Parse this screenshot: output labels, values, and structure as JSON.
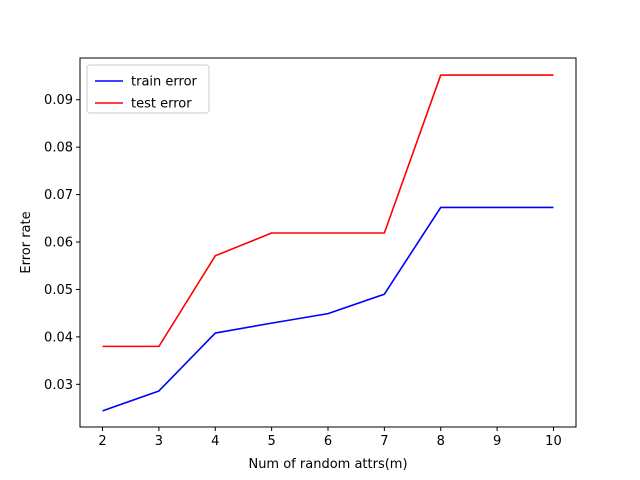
{
  "chart_data": {
    "type": "line",
    "xlabel": "Num of random attrs(m)",
    "ylabel": "Error rate",
    "x": [
      2,
      3,
      4,
      5,
      6,
      7,
      8,
      9,
      10
    ],
    "xlim": [
      1.6,
      10.4
    ],
    "ylim": [
      0.021,
      0.0988
    ],
    "xticks": [
      2,
      3,
      4,
      5,
      6,
      7,
      8,
      9,
      10
    ],
    "yticks": [
      0.03,
      0.04,
      0.05,
      0.06,
      0.07,
      0.08,
      0.09
    ],
    "ytick_labels": [
      "0.03",
      "0.04",
      "0.05",
      "0.06",
      "0.07",
      "0.08",
      "0.09"
    ],
    "grid": false,
    "legend_position": "top-left",
    "series": [
      {
        "name": "train error",
        "color": "#0000ff",
        "values": [
          0.0244,
          0.0286,
          0.0408,
          0.0429,
          0.0449,
          0.049,
          0.0673,
          0.0673,
          0.0673
        ]
      },
      {
        "name": "test error",
        "color": "#ff0000",
        "values": [
          0.038,
          0.038,
          0.0571,
          0.0619,
          0.0619,
          0.0619,
          0.0952,
          0.0952,
          0.0952
        ]
      }
    ]
  }
}
